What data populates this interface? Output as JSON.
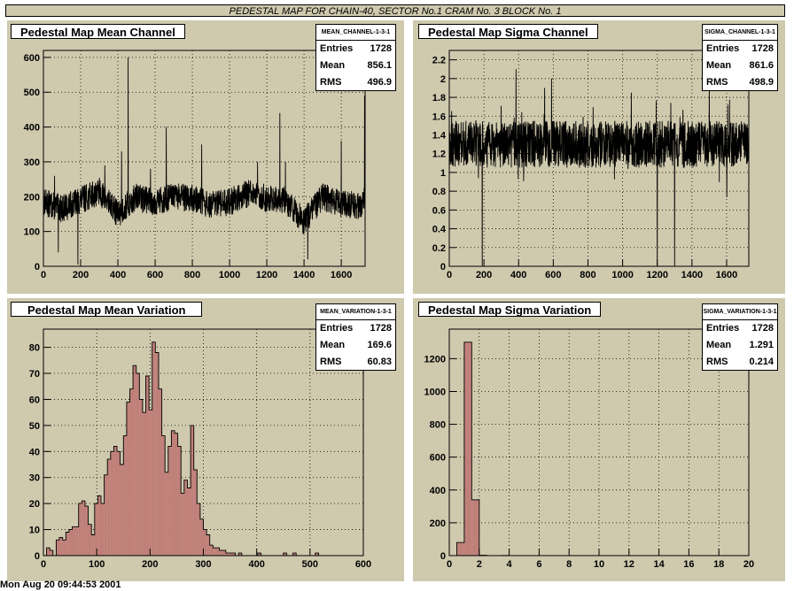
{
  "page": {
    "title": "PEDESTAL MAP FOR CHAIN-40, SECTOR No.1 CRAM No. 3 BLOCK No. 1",
    "footer": "Mon Aug 20 09:44:53 2001"
  },
  "colors": {
    "pad_bg": "#cfc9ae",
    "hist_fill": "#c0807a",
    "line": "#000000"
  },
  "chart_data": [
    {
      "id": "mean_channel",
      "type": "line",
      "title": "Pedestal Map Mean Channel",
      "stats": {
        "name": "MEAN_CHANNEL-1-3-1",
        "entries_label": "Entries",
        "entries": "1728",
        "mean_label": "Mean",
        "mean": "856.1",
        "rms_label": "RMS",
        "rms": "496.9"
      },
      "xlim": [
        0,
        1728
      ],
      "ylim": [
        0,
        620
      ],
      "xticks": [
        0,
        200,
        400,
        600,
        800,
        1000,
        1200,
        1400,
        1600
      ],
      "yticks": [
        0,
        100,
        200,
        300,
        400,
        500,
        600
      ],
      "n_points": 1728,
      "baseline_segments": [
        [
          0,
          185
        ],
        [
          100,
          165
        ],
        [
          200,
          190
        ],
        [
          300,
          215
        ],
        [
          400,
          150
        ],
        [
          500,
          200
        ],
        [
          600,
          185
        ],
        [
          700,
          200
        ],
        [
          800,
          195
        ],
        [
          900,
          175
        ],
        [
          1000,
          185
        ],
        [
          1100,
          210
        ],
        [
          1200,
          195
        ],
        [
          1300,
          190
        ],
        [
          1400,
          130
        ],
        [
          1500,
          200
        ],
        [
          1600,
          180
        ],
        [
          1700,
          175
        ],
        [
          1728,
          190
        ]
      ],
      "spikes": [
        [
          60,
          260
        ],
        [
          80,
          40
        ],
        [
          185,
          5
        ],
        [
          330,
          290
        ],
        [
          420,
          330
        ],
        [
          455,
          600
        ],
        [
          575,
          280
        ],
        [
          660,
          400
        ],
        [
          850,
          350
        ],
        [
          1150,
          300
        ],
        [
          1270,
          440
        ],
        [
          1300,
          300
        ],
        [
          1420,
          20
        ],
        [
          1600,
          360
        ],
        [
          1725,
          490
        ]
      ]
    },
    {
      "id": "sigma_channel",
      "type": "line",
      "title": "Pedestal Map Sigma Channel",
      "stats": {
        "name": "SIGMA_CHANNEL-1-3-1",
        "entries_label": "Entries",
        "entries": "1728",
        "mean_label": "Mean",
        "mean": "861.6",
        "rms_label": "RMS",
        "rms": "498.9"
      },
      "xlim": [
        0,
        1728
      ],
      "ylim": [
        0,
        2.3
      ],
      "xticks": [
        0,
        200,
        400,
        600,
        800,
        1000,
        1200,
        1400,
        1600
      ],
      "yticks": [
        0,
        0.2,
        0.4,
        0.6,
        0.8,
        1,
        1.2,
        1.4,
        1.6,
        1.8,
        2,
        2.2
      ],
      "n_points": 1728,
      "baseline": 1.3,
      "spikes": [
        [
          190,
          0
        ],
        [
          385,
          2.1
        ],
        [
          550,
          1.9
        ],
        [
          590,
          2.0
        ],
        [
          1050,
          1.85
        ],
        [
          1200,
          0
        ],
        [
          1300,
          0
        ],
        [
          1500,
          1.9
        ]
      ]
    },
    {
      "id": "mean_variation",
      "type": "bar",
      "title": "Pedestal Map Mean Variation",
      "stats": {
        "name": "MEAN_VARIATION-1-3-1",
        "entries_label": "Entries",
        "entries": "1728",
        "mean_label": "Mean",
        "mean": "169.6",
        "rms_label": "RMS",
        "rms": "60.83"
      },
      "xlim": [
        0,
        600
      ],
      "ylim": [
        0,
        87
      ],
      "xticks": [
        0,
        100,
        200,
        300,
        400,
        500,
        600
      ],
      "yticks": [
        0,
        10,
        20,
        30,
        40,
        50,
        60,
        70,
        80
      ],
      "bin_start": 0,
      "bin_width": 6,
      "values": [
        0,
        3,
        2,
        0,
        6,
        7,
        6,
        9,
        10,
        11,
        11,
        20,
        21,
        19,
        12,
        8,
        20,
        23,
        20,
        31,
        37,
        40,
        42,
        40,
        35,
        46,
        59,
        64,
        73,
        70,
        60,
        55,
        69,
        56,
        82,
        78,
        64,
        46,
        32,
        42,
        48,
        47,
        42,
        24,
        29,
        26,
        50,
        33,
        20,
        14,
        10,
        8,
        4,
        3,
        3,
        2,
        2,
        1,
        1,
        1,
        0,
        1,
        0,
        0,
        0,
        0,
        0,
        1,
        0,
        0,
        0,
        0,
        0,
        0,
        0,
        1,
        0,
        0,
        1,
        0,
        0,
        0,
        0,
        0,
        0,
        1,
        0,
        0,
        0,
        0,
        0,
        0,
        0,
        0,
        0,
        0,
        0,
        0,
        0,
        0
      ]
    },
    {
      "id": "sigma_variation",
      "type": "bar",
      "title": "Pedestal Map Sigma Variation",
      "stats": {
        "name": "SIGMA_VARIATION-1-3-1",
        "entries_label": "Entries",
        "entries": "1728",
        "mean_label": "Mean",
        "mean": "1.291",
        "rms_label": "RMS",
        "rms": "0.214"
      },
      "xlim": [
        0,
        20
      ],
      "ylim": [
        0,
        1380
      ],
      "xticks": [
        0,
        2,
        4,
        6,
        8,
        10,
        12,
        14,
        16,
        18,
        20
      ],
      "yticks": [
        0,
        200,
        400,
        600,
        800,
        1000,
        1200
      ],
      "bin_start": 0,
      "bin_width": 0.5,
      "values": [
        0,
        80,
        1300,
        340,
        2,
        0,
        0,
        1,
        0,
        0,
        0,
        0,
        0,
        0,
        0,
        0,
        0,
        0,
        0,
        0,
        0,
        0,
        0,
        0,
        0,
        0,
        0,
        0,
        0,
        0,
        0,
        0,
        0,
        0,
        0,
        0,
        0,
        0,
        0,
        0
      ]
    }
  ]
}
